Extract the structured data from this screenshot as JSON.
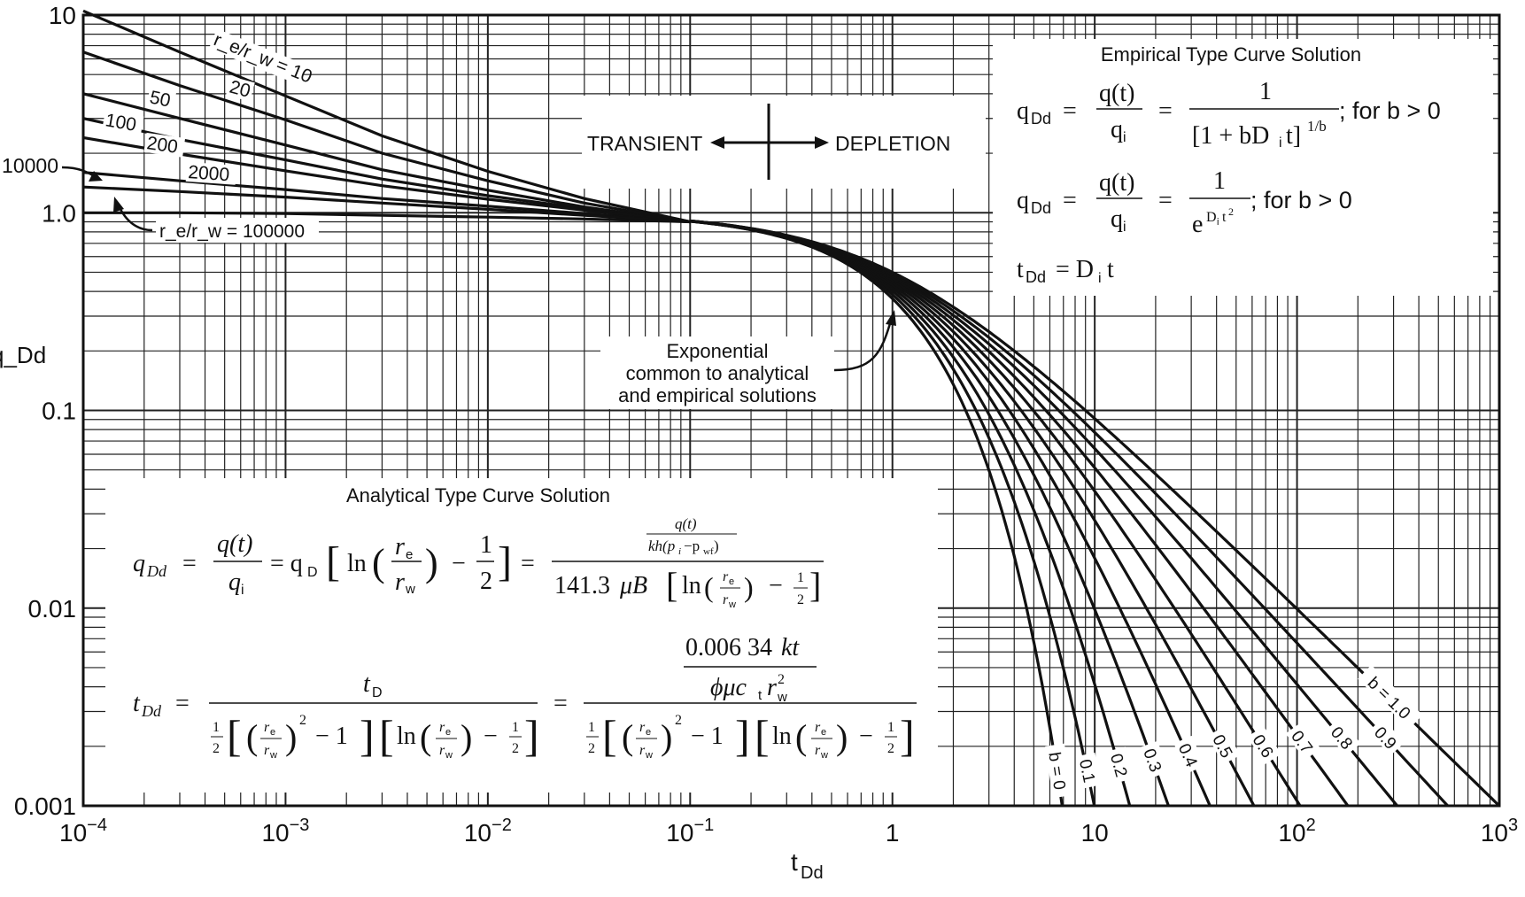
{
  "chart_data": {
    "type": "line",
    "scale": "log-log",
    "grid": true,
    "xlim": [
      0.0001,
      1000
    ],
    "ylim": [
      0.001,
      10
    ],
    "xlabel": "t_Dd",
    "ylabel": "q_Dd",
    "x_tick_labels": [
      "10^-4",
      "10^-3",
      "10^-2",
      "10^-1",
      "1",
      "10",
      "10^2",
      "10^3"
    ],
    "y_tick_labels": [
      "0.001",
      "0.01",
      "0.1",
      "1.0",
      "10"
    ],
    "transient_series": [
      {
        "name": "10",
        "x": [
          0.0001,
          0.0003,
          0.001,
          0.003,
          0.01,
          0.03,
          0.1
        ],
        "y": [
          10.5,
          6.5,
          3.9,
          2.45,
          1.62,
          1.18,
          0.9
        ]
      },
      {
        "name": "20",
        "x": [
          0.0001,
          0.0003,
          0.001,
          0.003,
          0.01,
          0.03,
          0.1
        ],
        "y": [
          6.5,
          4.4,
          2.95,
          2.0,
          1.45,
          1.12,
          0.9
        ]
      },
      {
        "name": "50",
        "x": [
          0.0001,
          0.0003,
          0.001,
          0.003,
          0.01,
          0.03,
          0.1
        ],
        "y": [
          4.0,
          3.0,
          2.2,
          1.65,
          1.3,
          1.07,
          0.9
        ]
      },
      {
        "name": "100",
        "x": [
          0.0001,
          0.0003,
          0.001,
          0.003,
          0.01,
          0.03,
          0.1
        ],
        "y": [
          3.0,
          2.35,
          1.85,
          1.48,
          1.22,
          1.05,
          0.9
        ]
      },
      {
        "name": "200",
        "x": [
          0.0001,
          0.0003,
          0.001,
          0.003,
          0.01,
          0.03,
          0.1
        ],
        "y": [
          2.4,
          1.98,
          1.63,
          1.37,
          1.17,
          1.03,
          0.9
        ]
      },
      {
        "name": "2000",
        "x": [
          0.0001,
          0.0003,
          0.001,
          0.003,
          0.01,
          0.03,
          0.1
        ],
        "y": [
          1.6,
          1.45,
          1.31,
          1.18,
          1.08,
          0.99,
          0.9
        ]
      },
      {
        "name": "10000",
        "x": [
          0.0001,
          0.0003,
          0.001,
          0.003,
          0.01,
          0.03,
          0.1
        ],
        "y": [
          1.35,
          1.28,
          1.2,
          1.12,
          1.04,
          0.97,
          0.9
        ]
      },
      {
        "name": "100000",
        "x": [
          0.0001,
          0.0003,
          0.001,
          0.003,
          0.01,
          0.03,
          0.1
        ],
        "y": [
          1.0,
          1.0,
          0.99,
          0.97,
          0.95,
          0.93,
          0.9
        ]
      }
    ],
    "depletion_series": [
      {
        "name": "b = 0",
        "b": 0
      },
      {
        "name": "0.1",
        "b": 0.1
      },
      {
        "name": "0.2",
        "b": 0.2
      },
      {
        "name": "0.3",
        "b": 0.3
      },
      {
        "name": "0.4",
        "b": 0.4
      },
      {
        "name": "0.5",
        "b": 0.5
      },
      {
        "name": "0.6",
        "b": 0.6
      },
      {
        "name": "0.7",
        "b": 0.7
      },
      {
        "name": "0.8",
        "b": 0.8
      },
      {
        "name": "0.9",
        "b": 0.9
      },
      {
        "name": "b = 1.0",
        "b": 1.0
      }
    ],
    "annotations": {
      "re_rw_10": "r_e/r_w = 10",
      "re_rw_20": "20",
      "re_rw_50": "50",
      "re_rw_100": "100",
      "re_rw_200": "200",
      "re_rw_2000": "2000",
      "re_rw_10000": "10000",
      "re_rw_100000": "r_e/r_w = 100000",
      "transient": "TRANSIENT",
      "depletion": "DEPLETION",
      "exponential_line1": "Exponential",
      "exponential_line2": "common to analytical",
      "exponential_line3": "and empirical solutions"
    },
    "empirical_box": {
      "title": "Empirical Type Curve Solution",
      "eq1_suffix": "; for b > 0",
      "eq2_suffix": "; for b > 0"
    },
    "analytical_box": {
      "title": "Analytical Type Curve Solution",
      "constant_1": "141.3",
      "constant_2": "0.006 34"
    }
  }
}
